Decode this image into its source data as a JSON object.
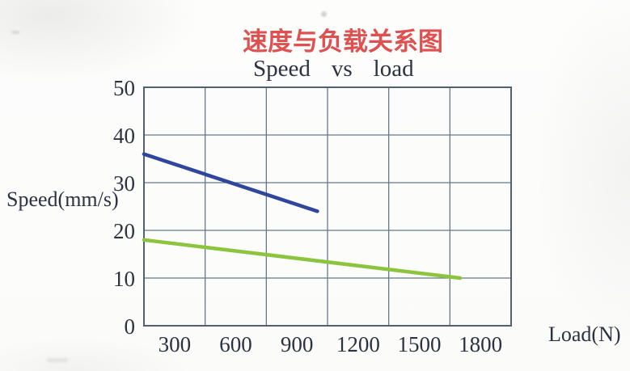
{
  "chart_data": {
    "type": "line",
    "title": "速度与负载关系图",
    "subtitle": "Speed vs load",
    "subtitle_words": [
      "Speed",
      "vs",
      "load"
    ],
    "xlabel": "Load(N)",
    "ylabel": "Speed(mm/s)",
    "xlim": [
      0,
      1800
    ],
    "ylim": [
      0,
      50
    ],
    "x_ticks": [
      300,
      600,
      900,
      1200,
      1500,
      1800
    ],
    "y_ticks": [
      0,
      10,
      20,
      30,
      40,
      50
    ],
    "grid": true,
    "legend": "none",
    "x_tick_alignment": "between-gridlines",
    "series": [
      {
        "name": "upper-blue-line",
        "color": "#2e479c",
        "points": [
          [
            0,
            36
          ],
          [
            850,
            24
          ]
        ]
      },
      {
        "name": "lower-green-line",
        "color": "#8cc43e",
        "points": [
          [
            0,
            18
          ],
          [
            1550,
            10
          ]
        ]
      }
    ],
    "colors": {
      "title_red": "#de5150",
      "text_dark": "#2b3240",
      "grid_line": "#64788c",
      "plot_border": "#50626f",
      "background": "#fdfdfc"
    }
  }
}
